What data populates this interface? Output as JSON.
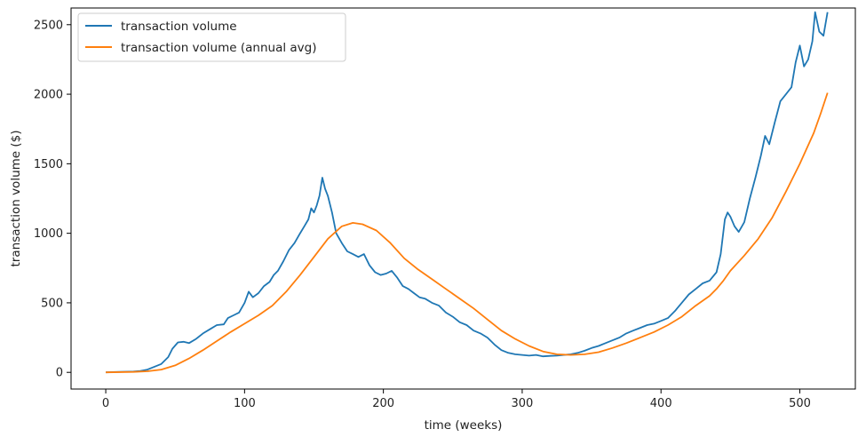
{
  "chart_data": {
    "type": "line",
    "title": "",
    "xlabel": "time (weeks)",
    "ylabel": "transaction volume ($)",
    "xlim": [
      -25,
      540
    ],
    "ylim": [
      -120,
      2620
    ],
    "xticks": [
      0,
      100,
      200,
      300,
      400,
      500
    ],
    "yticks": [
      0,
      500,
      1000,
      1500,
      2000,
      2500
    ],
    "grid": false,
    "legend_position": "upper-left",
    "series": [
      {
        "name": "transaction volume",
        "color": "#1f77b4",
        "points": [
          [
            0,
            0
          ],
          [
            10,
            3
          ],
          [
            20,
            6
          ],
          [
            25,
            10
          ],
          [
            30,
            20
          ],
          [
            35,
            40
          ],
          [
            40,
            60
          ],
          [
            45,
            110
          ],
          [
            48,
            170
          ],
          [
            52,
            215
          ],
          [
            56,
            220
          ],
          [
            60,
            210
          ],
          [
            65,
            240
          ],
          [
            70,
            280
          ],
          [
            75,
            310
          ],
          [
            80,
            340
          ],
          [
            85,
            345
          ],
          [
            88,
            390
          ],
          [
            92,
            410
          ],
          [
            96,
            430
          ],
          [
            100,
            500
          ],
          [
            103,
            580
          ],
          [
            106,
            540
          ],
          [
            110,
            570
          ],
          [
            114,
            620
          ],
          [
            118,
            650
          ],
          [
            121,
            700
          ],
          [
            124,
            730
          ],
          [
            128,
            800
          ],
          [
            132,
            880
          ],
          [
            136,
            930
          ],
          [
            140,
            1000
          ],
          [
            143,
            1050
          ],
          [
            146,
            1100
          ],
          [
            148,
            1180
          ],
          [
            150,
            1150
          ],
          [
            152,
            1200
          ],
          [
            154,
            1270
          ],
          [
            156,
            1400
          ],
          [
            158,
            1320
          ],
          [
            160,
            1270
          ],
          [
            163,
            1150
          ],
          [
            166,
            1000
          ],
          [
            170,
            930
          ],
          [
            174,
            870
          ],
          [
            178,
            850
          ],
          [
            182,
            830
          ],
          [
            186,
            850
          ],
          [
            190,
            770
          ],
          [
            194,
            720
          ],
          [
            198,
            700
          ],
          [
            202,
            710
          ],
          [
            206,
            730
          ],
          [
            210,
            680
          ],
          [
            214,
            620
          ],
          [
            218,
            600
          ],
          [
            222,
            570
          ],
          [
            226,
            540
          ],
          [
            230,
            530
          ],
          [
            235,
            500
          ],
          [
            240,
            480
          ],
          [
            245,
            430
          ],
          [
            250,
            400
          ],
          [
            255,
            360
          ],
          [
            260,
            340
          ],
          [
            265,
            300
          ],
          [
            270,
            280
          ],
          [
            275,
            250
          ],
          [
            280,
            200
          ],
          [
            285,
            160
          ],
          [
            290,
            140
          ],
          [
            295,
            130
          ],
          [
            300,
            125
          ],
          [
            305,
            120
          ],
          [
            310,
            125
          ],
          [
            315,
            115
          ],
          [
            320,
            118
          ],
          [
            325,
            120
          ],
          [
            330,
            125
          ],
          [
            335,
            130
          ],
          [
            340,
            140
          ],
          [
            345,
            155
          ],
          [
            350,
            175
          ],
          [
            355,
            190
          ],
          [
            360,
            210
          ],
          [
            365,
            230
          ],
          [
            370,
            250
          ],
          [
            375,
            280
          ],
          [
            380,
            300
          ],
          [
            385,
            320
          ],
          [
            390,
            340
          ],
          [
            395,
            350
          ],
          [
            400,
            370
          ],
          [
            405,
            390
          ],
          [
            410,
            440
          ],
          [
            415,
            500
          ],
          [
            420,
            560
          ],
          [
            425,
            600
          ],
          [
            430,
            640
          ],
          [
            435,
            660
          ],
          [
            440,
            720
          ],
          [
            443,
            850
          ],
          [
            446,
            1100
          ],
          [
            448,
            1150
          ],
          [
            450,
            1120
          ],
          [
            453,
            1050
          ],
          [
            456,
            1010
          ],
          [
            460,
            1080
          ],
          [
            464,
            1250
          ],
          [
            468,
            1400
          ],
          [
            472,
            1560
          ],
          [
            475,
            1700
          ],
          [
            478,
            1640
          ],
          [
            482,
            1800
          ],
          [
            486,
            1950
          ],
          [
            490,
            2000
          ],
          [
            494,
            2050
          ],
          [
            497,
            2230
          ],
          [
            500,
            2350
          ],
          [
            503,
            2200
          ],
          [
            506,
            2250
          ],
          [
            509,
            2380
          ],
          [
            511,
            2590
          ],
          [
            514,
            2450
          ],
          [
            517,
            2420
          ],
          [
            520,
            2590
          ]
        ]
      },
      {
        "name": "transaction volume (annual avg)",
        "color": "#ff7f0e",
        "points": [
          [
            0,
            0
          ],
          [
            20,
            3
          ],
          [
            30,
            8
          ],
          [
            40,
            20
          ],
          [
            50,
            50
          ],
          [
            60,
            100
          ],
          [
            70,
            160
          ],
          [
            80,
            225
          ],
          [
            90,
            290
          ],
          [
            100,
            350
          ],
          [
            110,
            410
          ],
          [
            120,
            480
          ],
          [
            130,
            580
          ],
          [
            140,
            700
          ],
          [
            150,
            830
          ],
          [
            160,
            960
          ],
          [
            170,
            1050
          ],
          [
            178,
            1075
          ],
          [
            185,
            1065
          ],
          [
            195,
            1020
          ],
          [
            205,
            930
          ],
          [
            215,
            820
          ],
          [
            225,
            740
          ],
          [
            235,
            670
          ],
          [
            245,
            600
          ],
          [
            255,
            530
          ],
          [
            265,
            460
          ],
          [
            275,
            380
          ],
          [
            285,
            300
          ],
          [
            295,
            240
          ],
          [
            305,
            190
          ],
          [
            315,
            150
          ],
          [
            325,
            130
          ],
          [
            335,
            125
          ],
          [
            345,
            130
          ],
          [
            355,
            145
          ],
          [
            365,
            175
          ],
          [
            375,
            210
          ],
          [
            385,
            250
          ],
          [
            395,
            290
          ],
          [
            405,
            340
          ],
          [
            415,
            400
          ],
          [
            425,
            480
          ],
          [
            435,
            550
          ],
          [
            440,
            600
          ],
          [
            445,
            660
          ],
          [
            450,
            730
          ],
          [
            460,
            840
          ],
          [
            470,
            960
          ],
          [
            480,
            1110
          ],
          [
            490,
            1300
          ],
          [
            500,
            1500
          ],
          [
            510,
            1720
          ],
          [
            515,
            1860
          ],
          [
            520,
            2010
          ]
        ]
      }
    ]
  }
}
